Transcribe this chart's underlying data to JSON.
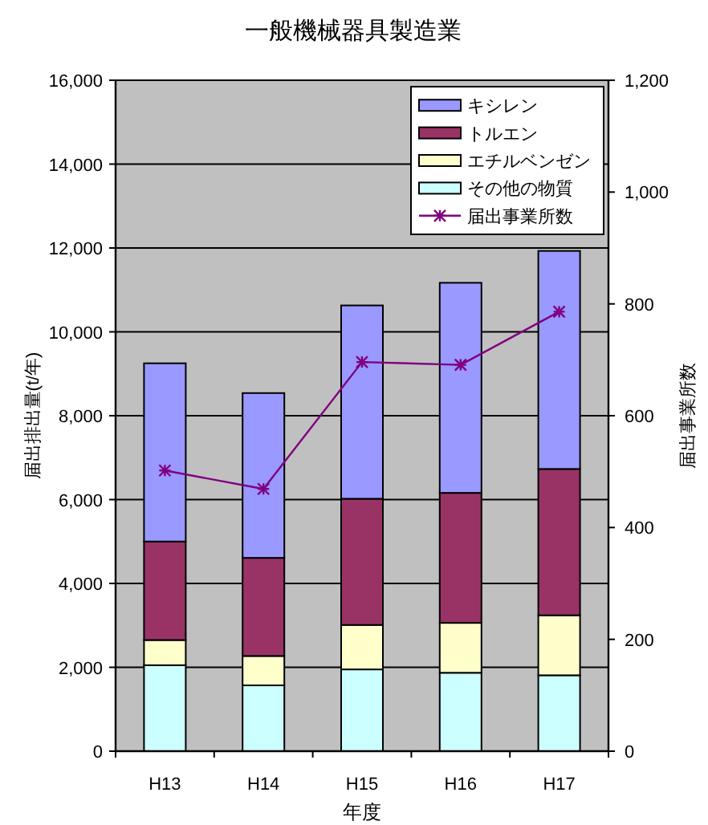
{
  "chart_data": {
    "type": "bar",
    "title": "一般機械器具製造業",
    "xlabel": "年度",
    "ylabel": "届出排出量(t/年)",
    "y2label": "届出事業所数",
    "categories": [
      "H13",
      "H14",
      "H15",
      "H16",
      "H17"
    ],
    "stacked": true,
    "series": [
      {
        "name": "その他の物質",
        "color": "#ccffff",
        "values": [
          2050,
          1570,
          1950,
          1870,
          1810
        ]
      },
      {
        "name": "エチルベンゼン",
        "color": "#ffffcc",
        "values": [
          600,
          700,
          1060,
          1190,
          1430
        ]
      },
      {
        "name": "トルエン",
        "color": "#993366",
        "values": [
          2350,
          2340,
          3010,
          3100,
          3490
        ]
      },
      {
        "name": "キシレン",
        "color": "#9999ff",
        "values": [
          4250,
          3930,
          4610,
          5010,
          5200
        ]
      },
      {
        "name": "届出事業所数",
        "type": "line",
        "axis": "y2",
        "color": "#800080",
        "marker": "cross",
        "values": [
          502,
          469,
          696,
          691,
          786
        ]
      }
    ],
    "ylim": [
      0,
      16000
    ],
    "yticks": [
      0,
      {
        "value": 2000,
        "label": "2,000"
      },
      {
        "value": 4000,
        "label": "4,000"
      },
      {
        "value": 6000,
        "label": "6,000"
      },
      {
        "value": 8000,
        "label": "8,000"
      },
      {
        "value": 10000,
        "label": "10,000"
      },
      {
        "value": 12000,
        "label": "12,000"
      },
      {
        "value": 14000,
        "label": "14,000"
      },
      {
        "value": 16000,
        "label": "16,000"
      }
    ],
    "y2lim": [
      0,
      1200
    ],
    "y2ticks": [
      0,
      200,
      400,
      600,
      800,
      {
        "value": 1000,
        "label": "1,000"
      },
      {
        "value": 1200,
        "label": "1,200"
      }
    ],
    "grid": "y",
    "legend": "top right"
  }
}
